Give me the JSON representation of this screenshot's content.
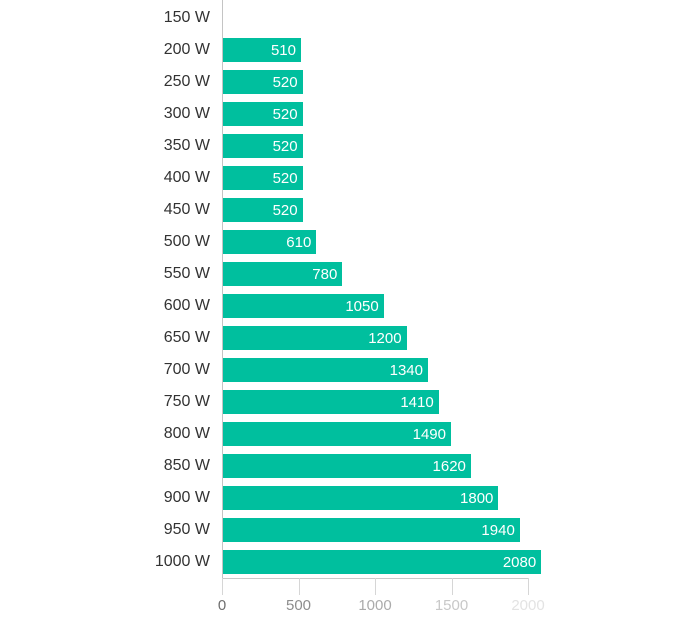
{
  "chart_data": {
    "type": "bar",
    "orientation": "horizontal",
    "categories": [
      "150 W",
      "200 W",
      "250 W",
      "300 W",
      "350 W",
      "400 W",
      "450 W",
      "500 W",
      "550 W",
      "600 W",
      "650 W",
      "700 W",
      "750 W",
      "800 W",
      "850 W",
      "900 W",
      "950 W",
      "1000 W"
    ],
    "values": [
      null,
      510,
      520,
      520,
      520,
      520,
      520,
      610,
      780,
      1050,
      1200,
      1340,
      1410,
      1490,
      1620,
      1800,
      1940,
      2080
    ],
    "value_labels": [
      "",
      "510",
      "520",
      "520",
      "520",
      "520",
      "520",
      "610",
      "780",
      "1050",
      "1200",
      "1340",
      "1410",
      "1490",
      "1620",
      "1800",
      "1940",
      "2080"
    ],
    "x_axis": {
      "tick_labels": [
        "0",
        "500",
        "1000",
        "1500",
        "2000"
      ],
      "tick_values": [
        0,
        500,
        1000,
        1500,
        2000
      ],
      "tick_label_colors": [
        "#6f6f6f",
        "#8d8d8d",
        "#ababab",
        "#c8c8c8",
        "#e3e3e3"
      ],
      "min": 0,
      "max": 2000
    },
    "layout": {
      "grid": "off",
      "legend": "none",
      "value_labels_position": "inside-end"
    },
    "colors": {
      "bar": "#00bf9e",
      "value_label": "#ffffff",
      "category_label": "#333333",
      "y_axis_line": "#c4c4c4",
      "x_axis_line": "#c9c9c9",
      "tick_line": "#d6d6d6",
      "background": "#ffffff"
    }
  }
}
